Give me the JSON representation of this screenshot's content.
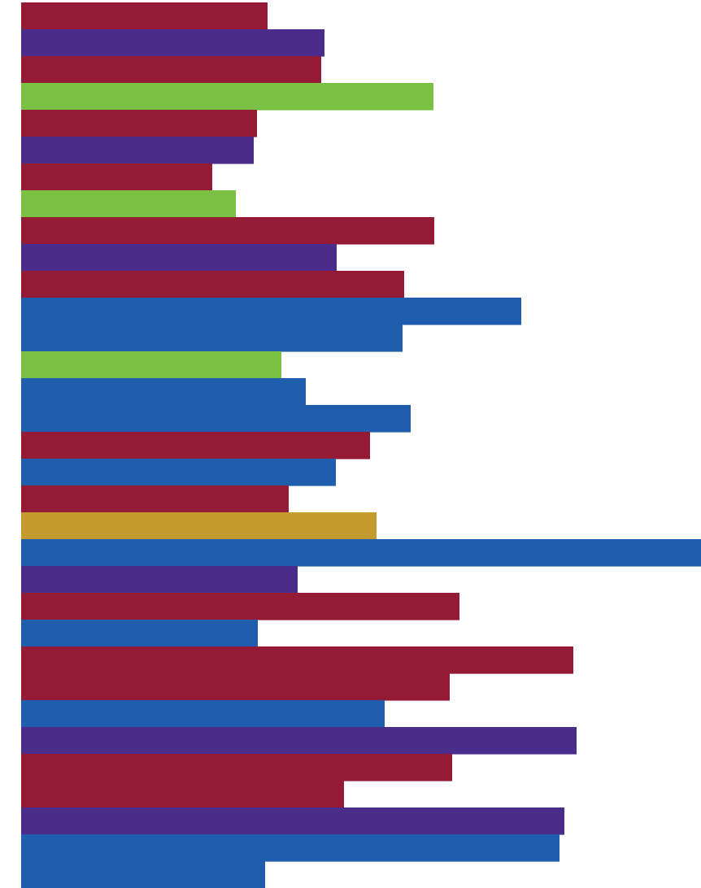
{
  "chart_data": {
    "type": "bar",
    "orientation": "horizontal",
    "grid": false,
    "legend": "none",
    "title": "",
    "xlabel": "",
    "ylabel": "",
    "xlim": [
      0,
      836
    ],
    "colors": {
      "crimson": "#951a36",
      "purple": "#4a2d8b",
      "green": "#7bc143",
      "blue": "#1f5ead",
      "gold": "#c59a2f"
    },
    "bars": [
      {
        "value": 303,
        "color": "crimson"
      },
      {
        "value": 373,
        "color": "purple"
      },
      {
        "value": 369,
        "color": "crimson"
      },
      {
        "value": 507,
        "color": "green"
      },
      {
        "value": 290,
        "color": "crimson"
      },
      {
        "value": 286,
        "color": "purple"
      },
      {
        "value": 235,
        "color": "crimson"
      },
      {
        "value": 264,
        "color": "green"
      },
      {
        "value": 508,
        "color": "crimson"
      },
      {
        "value": 388,
        "color": "purple"
      },
      {
        "value": 471,
        "color": "crimson"
      },
      {
        "value": 615,
        "color": "blue"
      },
      {
        "value": 469,
        "color": "blue"
      },
      {
        "value": 320,
        "color": "green"
      },
      {
        "value": 350,
        "color": "blue"
      },
      {
        "value": 479,
        "color": "blue"
      },
      {
        "value": 429,
        "color": "crimson"
      },
      {
        "value": 387,
        "color": "blue"
      },
      {
        "value": 329,
        "color": "crimson"
      },
      {
        "value": 437,
        "color": "gold"
      },
      {
        "value": 836,
        "color": "blue"
      },
      {
        "value": 340,
        "color": "purple"
      },
      {
        "value": 539,
        "color": "crimson"
      },
      {
        "value": 291,
        "color": "blue"
      },
      {
        "value": 679,
        "color": "crimson"
      },
      {
        "value": 527,
        "color": "crimson"
      },
      {
        "value": 447,
        "color": "blue"
      },
      {
        "value": 683,
        "color": "purple"
      },
      {
        "value": 530,
        "color": "crimson"
      },
      {
        "value": 397,
        "color": "crimson"
      },
      {
        "value": 668,
        "color": "purple"
      },
      {
        "value": 662,
        "color": "blue"
      },
      {
        "value": 300,
        "color": "blue"
      }
    ]
  }
}
